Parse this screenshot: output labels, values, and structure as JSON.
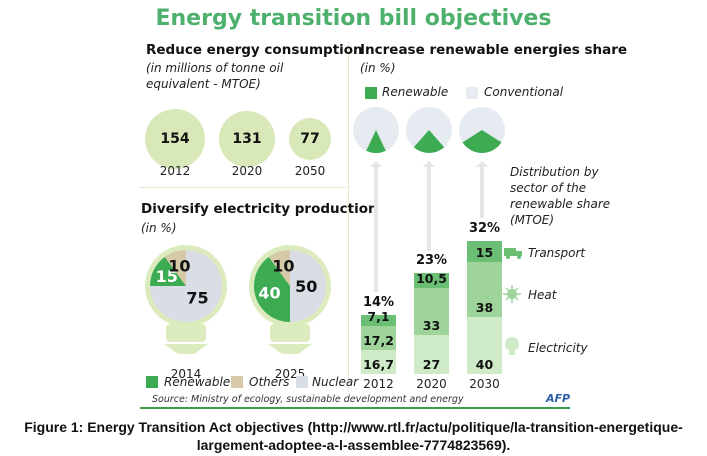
{
  "title": "Energy transition bill objectives",
  "caption_line1": "Figure 1: Energy Transition Act objectives  (http://www.rtl.fr/actu/politique/la-transition-energetique-",
  "caption_line2": "largement-adoptee-a-l-assemblee-7774823569).",
  "source": "Source: Ministry of ecology, sustainable development and energy",
  "credit": "AFP",
  "colors": {
    "title": "#4db06c",
    "renewable": "#3cab52",
    "others": "#d5c9a8",
    "nuclear": "#d8dde6",
    "conventional": "#e6ebf1",
    "bubble": "#d9e8b8",
    "transport": "#6abf74",
    "heat": "#9ed49a",
    "electricity": "#cfeac6"
  },
  "chart_data": [
    {
      "type": "bubble",
      "title": "Reduce energy consumption",
      "subtitle": "(in millions of tonne oil equivalent - MTOE)",
      "categories": [
        "2012",
        "2020",
        "2050"
      ],
      "values": [
        154,
        131,
        77
      ],
      "labels": [
        "154",
        "131",
        "77"
      ]
    },
    {
      "type": "pie",
      "title": "Diversify electricity production",
      "subtitle": "(in %)",
      "legend": [
        "Renewable",
        "Others",
        "Nuclear"
      ],
      "pies": [
        {
          "year": "2014",
          "slices": [
            {
              "name": "Renewable",
              "value": 15,
              "label": "15"
            },
            {
              "name": "Others",
              "value": 10,
              "label": "10"
            },
            {
              "name": "Nuclear",
              "value": 75,
              "label": "75"
            }
          ]
        },
        {
          "year": "2025",
          "slices": [
            {
              "name": "Renewable",
              "value": 40,
              "label": "40"
            },
            {
              "name": "Others",
              "value": 10,
              "label": "10"
            },
            {
              "name": "Nuclear",
              "value": 50,
              "label": "50"
            }
          ]
        }
      ]
    },
    {
      "type": "pie",
      "title": "Increase renewable energies share",
      "subtitle": "(in %)",
      "legend": [
        "Renewable",
        "Conventional"
      ],
      "categories": [
        "2012",
        "2020",
        "2030"
      ],
      "values": [
        14,
        23,
        32
      ],
      "labels": [
        "14%",
        "23%",
        "32%"
      ]
    },
    {
      "type": "bar",
      "stacked": true,
      "title": "Distribution by sector of the renewable share (MTOE)",
      "categories": [
        "2012",
        "2020",
        "2030"
      ],
      "series": [
        {
          "name": "Electricity",
          "values": [
            16.7,
            27,
            40
          ],
          "labels": [
            "16,7",
            "27",
            "40"
          ]
        },
        {
          "name": "Heat",
          "values": [
            17.2,
            33,
            38
          ],
          "labels": [
            "17,2",
            "33",
            "38"
          ]
        },
        {
          "name": "Transport",
          "values": [
            7.1,
            10.5,
            15
          ],
          "labels": [
            "7,1",
            "10,5",
            "15"
          ]
        }
      ],
      "legend": [
        "Transport",
        "Heat",
        "Electricity"
      ]
    }
  ],
  "text": {
    "cons_title": "Reduce energy consumption",
    "cons_sub1": "(in millions of tonne oil",
    "cons_sub2": "equivalent - MTOE)",
    "elec_title": "Diversify electricity production",
    "elec_sub": "(in %)",
    "ren_title": "Increase renewable energies share",
    "ren_sub": "(in %)",
    "ren_leg_renewable": "Renewable",
    "ren_leg_conventional": "Conventional",
    "dist_1": "Distribution by",
    "dist_2": "sector of the",
    "dist_3": "renewable share",
    "dist_4": "(MTOE)",
    "leg_transport": "Transport",
    "leg_heat": "Heat",
    "leg_electricity": "Electricity",
    "pie_leg_renewable": "Renewable",
    "pie_leg_others": "Others",
    "pie_leg_nuclear": "Nuclear"
  }
}
